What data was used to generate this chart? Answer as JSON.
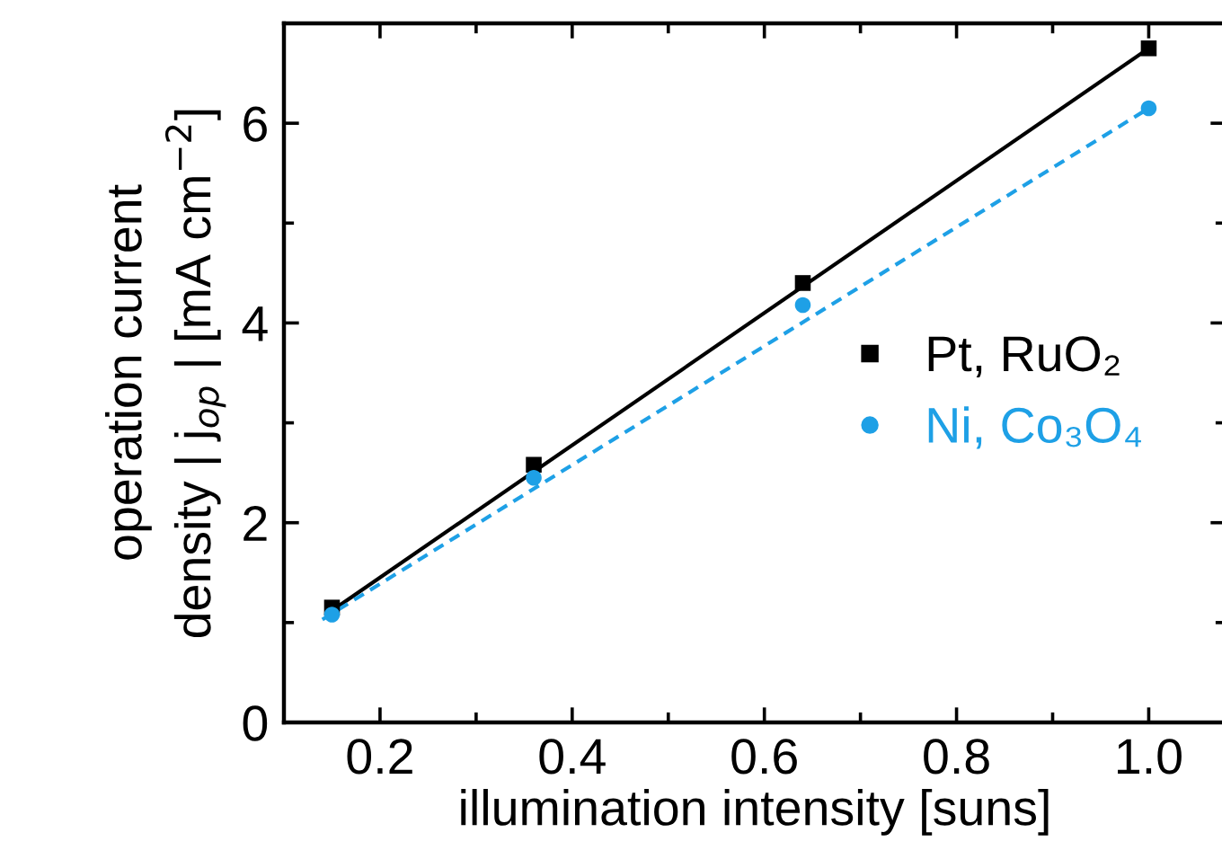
{
  "chart_data": {
    "type": "scatter",
    "xlabel": "illumination intensity [suns]",
    "ylabel": "operation current\ndensity | j$_{op}$ | [mA cm$^{−2}$]",
    "x": [
      0.15,
      0.36,
      0.64,
      1.0
    ],
    "series": [
      {
        "name": "Pt, RuO₂",
        "color": "#000000",
        "marker": "square",
        "values": [
          1.15,
          2.58,
          4.4,
          6.75
        ]
      },
      {
        "name": "Ni, Co₃O₄",
        "color": "#1ea0e6",
        "marker": "circle",
        "values": [
          1.08,
          2.45,
          4.18,
          6.15
        ]
      },
      {
        "type": "line",
        "color": "#000000",
        "line_style": "solid",
        "marker": "none",
        "x": [
          0.15,
          1.0
        ],
        "values": [
          1.12,
          6.75
        ]
      },
      {
        "type": "line",
        "color": "#1ea0e6",
        "line_style": "dashed",
        "marker": "none",
        "x": [
          0.14,
          1.0
        ],
        "values": [
          1.03,
          6.15
        ]
      }
    ],
    "xlim": [
      0.1,
      1.08
    ],
    "ylim": [
      0,
      7
    ],
    "xticks": [
      0.2,
      {
        "value": 0.3,
        "label": null
      },
      0.4,
      {
        "value": 0.5,
        "label": null
      },
      0.6,
      {
        "value": 0.7,
        "label": null
      },
      0.8,
      {
        "value": 0.9,
        "label": null
      },
      {
        "value": 1,
        "label": "1.0"
      }
    ],
    "yticks": [
      0,
      {
        "value": 1,
        "label": null
      },
      2,
      {
        "value": 3,
        "label": null
      },
      4,
      {
        "value": 5,
        "label": null
      },
      6
    ],
    "legend": "right",
    "grid": false
  }
}
